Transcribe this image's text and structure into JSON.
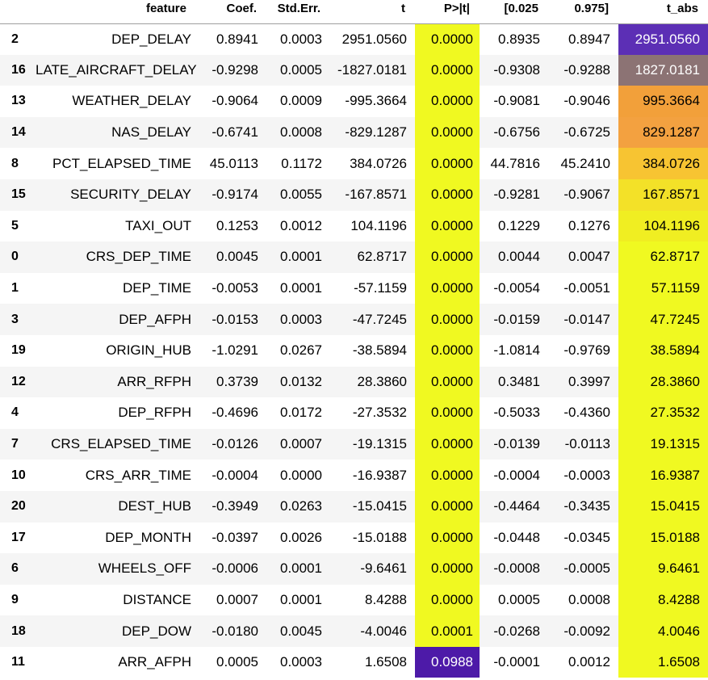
{
  "table": {
    "columns": [
      "",
      "feature",
      "Coef.",
      "Std.Err.",
      "t",
      "P>|t|",
      "[0.025",
      "0.975]",
      "t_abs"
    ],
    "rows": [
      {
        "idx": "2",
        "feature": "DEP_DELAY",
        "coef": "0.8941",
        "se": "0.0003",
        "t": "2951.0560",
        "p": "0.0000",
        "lo": "0.8935",
        "hi": "0.8947",
        "t_abs": "2951.0560",
        "p_bg": "#f0f921",
        "p_fg": "#000000",
        "tabs_bg": "#5c2fb5",
        "tabs_fg": "#ffffff"
      },
      {
        "idx": "16",
        "feature": "LATE_AIRCRAFT_DELAY",
        "coef": "-0.9298",
        "se": "0.0005",
        "t": "-1827.0181",
        "p": "0.0000",
        "lo": "-0.9308",
        "hi": "-0.9288",
        "t_abs": "1827.0181",
        "p_bg": "#f0f921",
        "p_fg": "#000000",
        "tabs_bg": "#8c7374",
        "tabs_fg": "#ffffff"
      },
      {
        "idx": "13",
        "feature": "WEATHER_DELAY",
        "coef": "-0.9064",
        "se": "0.0009",
        "t": "-995.3664",
        "p": "0.0000",
        "lo": "-0.9081",
        "hi": "-0.9046",
        "t_abs": "995.3664",
        "p_bg": "#f0f921",
        "p_fg": "#000000",
        "tabs_bg": "#f2a03a",
        "tabs_fg": "#000000"
      },
      {
        "idx": "14",
        "feature": "NAS_DELAY",
        "coef": "-0.6741",
        "se": "0.0008",
        "t": "-829.1287",
        "p": "0.0000",
        "lo": "-0.6756",
        "hi": "-0.6725",
        "t_abs": "829.1287",
        "p_bg": "#f0f921",
        "p_fg": "#000000",
        "tabs_bg": "#f3a140",
        "tabs_fg": "#000000"
      },
      {
        "idx": "8",
        "feature": "PCT_ELAPSED_TIME",
        "coef": "45.0113",
        "se": "0.1172",
        "t": "384.0726",
        "p": "0.0000",
        "lo": "44.7816",
        "hi": "45.2410",
        "t_abs": "384.0726",
        "p_bg": "#f0f921",
        "p_fg": "#000000",
        "tabs_bg": "#f7c432",
        "tabs_fg": "#000000"
      },
      {
        "idx": "15",
        "feature": "SECURITY_DELAY",
        "coef": "-0.9174",
        "se": "0.0055",
        "t": "-167.8571",
        "p": "0.0000",
        "lo": "-0.9281",
        "hi": "-0.9067",
        "t_abs": "167.8571",
        "p_bg": "#f0f921",
        "p_fg": "#000000",
        "tabs_bg": "#f3e128",
        "tabs_fg": "#000000"
      },
      {
        "idx": "5",
        "feature": "TAXI_OUT",
        "coef": "0.1253",
        "se": "0.0012",
        "t": "104.1196",
        "p": "0.0000",
        "lo": "0.1229",
        "hi": "0.1276",
        "t_abs": "104.1196",
        "p_bg": "#f0f921",
        "p_fg": "#000000",
        "tabs_bg": "#f0ee22",
        "tabs_fg": "#000000"
      },
      {
        "idx": "0",
        "feature": "CRS_DEP_TIME",
        "coef": "0.0045",
        "se": "0.0001",
        "t": "62.8717",
        "p": "0.0000",
        "lo": "0.0044",
        "hi": "0.0047",
        "t_abs": "62.8717",
        "p_bg": "#f0f921",
        "p_fg": "#000000",
        "tabs_bg": "#f0f921",
        "tabs_fg": "#000000"
      },
      {
        "idx": "1",
        "feature": "DEP_TIME",
        "coef": "-0.0053",
        "se": "0.0001",
        "t": "-57.1159",
        "p": "0.0000",
        "lo": "-0.0054",
        "hi": "-0.0051",
        "t_abs": "57.1159",
        "p_bg": "#f0f921",
        "p_fg": "#000000",
        "tabs_bg": "#f0f921",
        "tabs_fg": "#000000"
      },
      {
        "idx": "3",
        "feature": "DEP_AFPH",
        "coef": "-0.0153",
        "se": "0.0003",
        "t": "-47.7245",
        "p": "0.0000",
        "lo": "-0.0159",
        "hi": "-0.0147",
        "t_abs": "47.7245",
        "p_bg": "#f0f921",
        "p_fg": "#000000",
        "tabs_bg": "#f0f921",
        "tabs_fg": "#000000"
      },
      {
        "idx": "19",
        "feature": "ORIGIN_HUB",
        "coef": "-1.0291",
        "se": "0.0267",
        "t": "-38.5894",
        "p": "0.0000",
        "lo": "-1.0814",
        "hi": "-0.9769",
        "t_abs": "38.5894",
        "p_bg": "#f0f921",
        "p_fg": "#000000",
        "tabs_bg": "#f0f921",
        "tabs_fg": "#000000"
      },
      {
        "idx": "12",
        "feature": "ARR_RFPH",
        "coef": "0.3739",
        "se": "0.0132",
        "t": "28.3860",
        "p": "0.0000",
        "lo": "0.3481",
        "hi": "0.3997",
        "t_abs": "28.3860",
        "p_bg": "#f0f921",
        "p_fg": "#000000",
        "tabs_bg": "#f0f921",
        "tabs_fg": "#000000"
      },
      {
        "idx": "4",
        "feature": "DEP_RFPH",
        "coef": "-0.4696",
        "se": "0.0172",
        "t": "-27.3532",
        "p": "0.0000",
        "lo": "-0.5033",
        "hi": "-0.4360",
        "t_abs": "27.3532",
        "p_bg": "#f0f921",
        "p_fg": "#000000",
        "tabs_bg": "#f0f921",
        "tabs_fg": "#000000"
      },
      {
        "idx": "7",
        "feature": "CRS_ELAPSED_TIME",
        "coef": "-0.0126",
        "se": "0.0007",
        "t": "-19.1315",
        "p": "0.0000",
        "lo": "-0.0139",
        "hi": "-0.0113",
        "t_abs": "19.1315",
        "p_bg": "#f0f921",
        "p_fg": "#000000",
        "tabs_bg": "#f0f921",
        "tabs_fg": "#000000"
      },
      {
        "idx": "10",
        "feature": "CRS_ARR_TIME",
        "coef": "-0.0004",
        "se": "0.0000",
        "t": "-16.9387",
        "p": "0.0000",
        "lo": "-0.0004",
        "hi": "-0.0003",
        "t_abs": "16.9387",
        "p_bg": "#f0f921",
        "p_fg": "#000000",
        "tabs_bg": "#f0f921",
        "tabs_fg": "#000000"
      },
      {
        "idx": "20",
        "feature": "DEST_HUB",
        "coef": "-0.3949",
        "se": "0.0263",
        "t": "-15.0415",
        "p": "0.0000",
        "lo": "-0.4464",
        "hi": "-0.3435",
        "t_abs": "15.0415",
        "p_bg": "#f0f921",
        "p_fg": "#000000",
        "tabs_bg": "#f0f921",
        "tabs_fg": "#000000"
      },
      {
        "idx": "17",
        "feature": "DEP_MONTH",
        "coef": "-0.0397",
        "se": "0.0026",
        "t": "-15.0188",
        "p": "0.0000",
        "lo": "-0.0448",
        "hi": "-0.0345",
        "t_abs": "15.0188",
        "p_bg": "#f0f921",
        "p_fg": "#000000",
        "tabs_bg": "#f0f921",
        "tabs_fg": "#000000"
      },
      {
        "idx": "6",
        "feature": "WHEELS_OFF",
        "coef": "-0.0006",
        "se": "0.0001",
        "t": "-9.6461",
        "p": "0.0000",
        "lo": "-0.0008",
        "hi": "-0.0005",
        "t_abs": "9.6461",
        "p_bg": "#f0f921",
        "p_fg": "#000000",
        "tabs_bg": "#f0f921",
        "tabs_fg": "#000000"
      },
      {
        "idx": "9",
        "feature": "DISTANCE",
        "coef": "0.0007",
        "se": "0.0001",
        "t": "8.4288",
        "p": "0.0000",
        "lo": "0.0005",
        "hi": "0.0008",
        "t_abs": "8.4288",
        "p_bg": "#f0f921",
        "p_fg": "#000000",
        "tabs_bg": "#f0f921",
        "tabs_fg": "#000000"
      },
      {
        "idx": "18",
        "feature": "DEP_DOW",
        "coef": "-0.0180",
        "se": "0.0045",
        "t": "-4.0046",
        "p": "0.0001",
        "lo": "-0.0268",
        "hi": "-0.0092",
        "t_abs": "4.0046",
        "p_bg": "#f0f921",
        "p_fg": "#000000",
        "tabs_bg": "#f0f921",
        "tabs_fg": "#000000"
      },
      {
        "idx": "11",
        "feature": "ARR_AFPH",
        "coef": "0.0005",
        "se": "0.0003",
        "t": "1.6508",
        "p": "0.0988",
        "lo": "-0.0001",
        "hi": "0.0012",
        "t_abs": "1.6508",
        "p_bg": "#4d1aa8",
        "p_fg": "#ffffff",
        "tabs_bg": "#f0f921",
        "tabs_fg": "#000000"
      }
    ]
  }
}
